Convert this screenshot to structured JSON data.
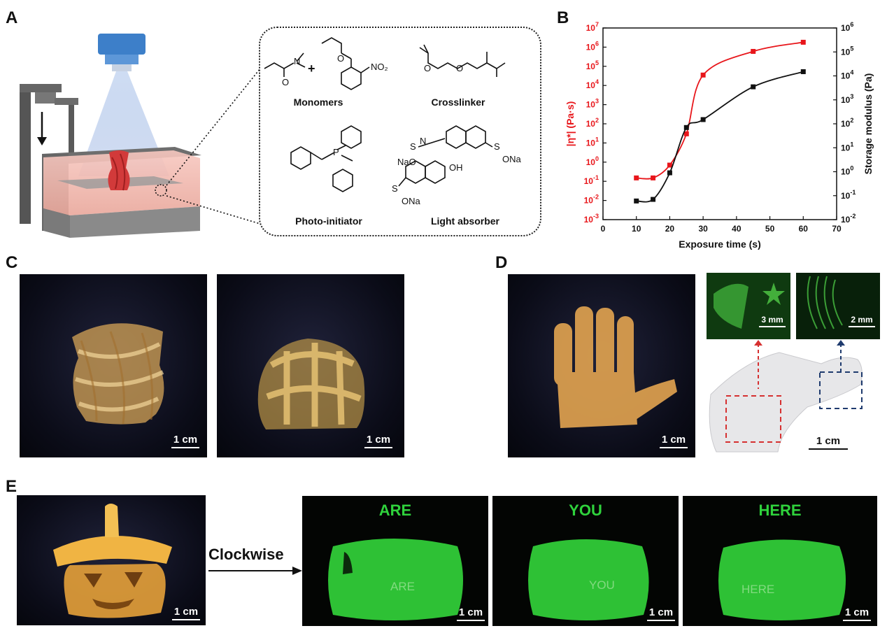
{
  "panels": {
    "A": {
      "label": "A",
      "monomers_label": "Monomers",
      "crosslinker_label": "Crosslinker",
      "photoinitiator_label": "Photo-initiator",
      "light_absorber_label": "Light absorber",
      "plus_sign": "+",
      "chem_text": {
        "no2": "NO₂",
        "n": "N",
        "o": "O",
        "p": "P",
        "s": "S",
        "nao": "NaO",
        "ona": "ONa",
        "oh": "OH"
      }
    },
    "B": {
      "label": "B"
    },
    "C": {
      "label": "C",
      "scale_left": "1 cm",
      "scale_right": "1 cm"
    },
    "D": {
      "label": "D",
      "scale_hand": "1 cm",
      "scale_inset1": "3 mm",
      "scale_inset2": "2 mm",
      "scale_model": "1 cm"
    },
    "E": {
      "label": "E",
      "scale_pumpkin": "1 cm",
      "arrow_label": "Clockwise",
      "green_titles": [
        "ARE",
        "YOU",
        "HERE"
      ],
      "engraved": [
        "ARE",
        "YOU",
        "HERE"
      ],
      "green_scales": [
        "1 cm",
        "1 cm",
        "1 cm"
      ]
    }
  },
  "colors": {
    "viscosity": "#e8161b",
    "modulus": "#111111",
    "fluor_green": "#2fd23c"
  },
  "chart_data": {
    "type": "line",
    "xlabel": "Exposure time (s)",
    "ylabel_left": "|η*| (Pa·s)",
    "ylabel_right": "Storage modulus (Pa)",
    "xlim": [
      0,
      70
    ],
    "xticks": [
      0,
      10,
      20,
      30,
      40,
      50,
      60,
      70
    ],
    "ylim_left": [
      0.001,
      10000000
    ],
    "ylim_right": [
      0.01,
      1000000
    ],
    "yscale": "log",
    "yticks_left": [
      "10-3",
      "10-2",
      "10-1",
      "100",
      "101",
      "102",
      "103",
      "104",
      "105",
      "106",
      "107"
    ],
    "yticks_right": [
      "10-2",
      "10-1",
      "100",
      "101",
      "102",
      "103",
      "104",
      "105",
      "106"
    ],
    "series": [
      {
        "axis": "left",
        "color": "#e8161b",
        "x": [
          10,
          15,
          20,
          25,
          30,
          45,
          60
        ],
        "y": [
          0.15,
          0.15,
          0.7,
          30,
          35000,
          600000,
          1800000
        ]
      },
      {
        "axis": "right",
        "color": "#111111",
        "x": [
          10,
          15,
          20,
          25,
          30,
          45,
          60
        ],
        "y": [
          0.06,
          0.07,
          0.9,
          70,
          150,
          3500,
          15000
        ]
      }
    ]
  }
}
